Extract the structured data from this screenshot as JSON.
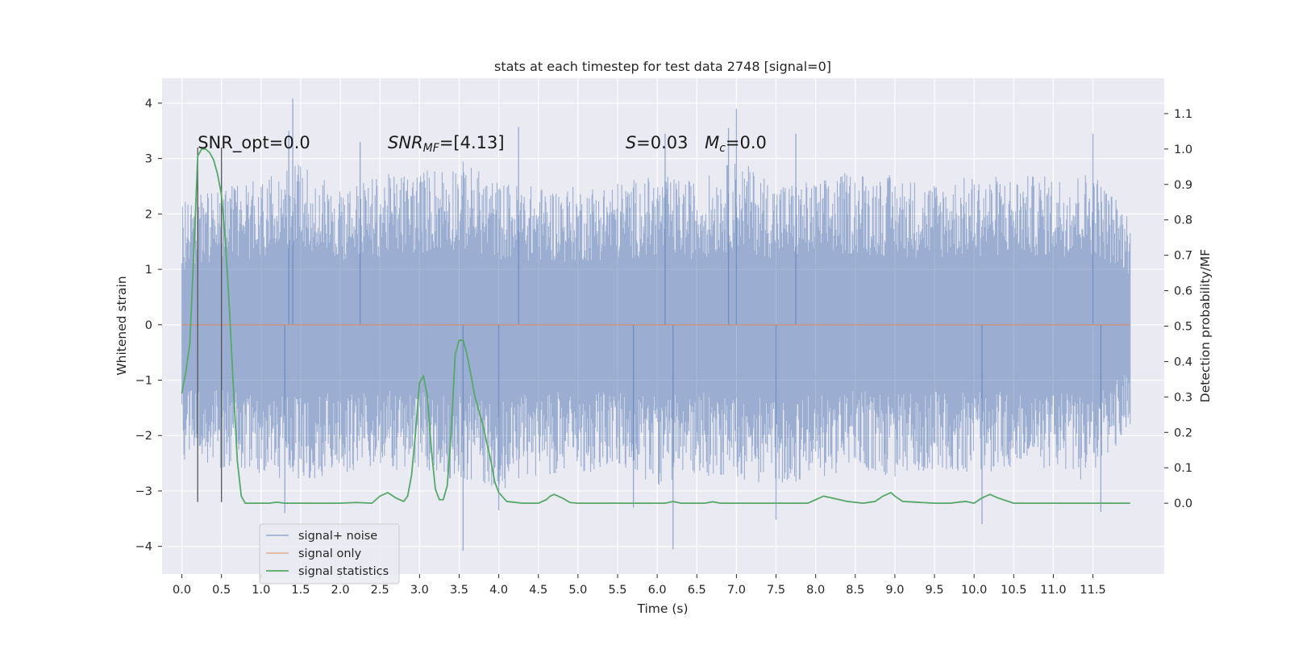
{
  "chart_data": {
    "type": "line",
    "title": "stats at each timestep for test data 2748 [signal=0]",
    "xlabel": "Time (s)",
    "ylabel_left": "Whitened strain",
    "ylabel_right": "Detection probability/MF",
    "xlim": [
      -0.25,
      12.4
    ],
    "ylim_left": [
      -4.5,
      4.45
    ],
    "ylim_right": [
      -0.2,
      1.2
    ],
    "x_ticks": [
      "0.0",
      "0.5",
      "1.0",
      "1.5",
      "2.0",
      "2.5",
      "3.0",
      "3.5",
      "4.0",
      "4.5",
      "5.0",
      "5.5",
      "6.0",
      "6.5",
      "7.0",
      "7.5",
      "8.0",
      "8.5",
      "9.0",
      "9.5",
      "10.0",
      "10.5",
      "11.0",
      "11.5"
    ],
    "y_ticks_left": [
      "4",
      "3",
      "2",
      "1",
      "0",
      "−1",
      "−2",
      "−3",
      "−4"
    ],
    "y_ticks_right": [
      "1.1",
      "1.0",
      "0.9",
      "0.8",
      "0.7",
      "0.6",
      "0.5",
      "0.4",
      "0.3",
      "0.2",
      "0.1",
      "0.0"
    ],
    "grid": true,
    "legend_position": "lower-left",
    "annotations": [
      {
        "label": "SNR_opt=0.0",
        "x": 0.2
      },
      {
        "label_main": "SNR",
        "label_sub": "MF",
        "label_rest": "=[4.13]",
        "x": 2.6
      },
      {
        "label_main": "S",
        "label_rest": "=0.03",
        "x": 5.6
      },
      {
        "label_main": "M",
        "label_sub": "c",
        "label_rest": "=0.0",
        "x": 6.6
      }
    ],
    "vertical_markers": [
      {
        "x": 0.2,
        "y_range": [
          -3.2,
          3.2
        ]
      },
      {
        "x": 0.5,
        "y_range": [
          -3.2,
          3.2
        ]
      }
    ],
    "series": [
      {
        "name": "signal+ noise",
        "axis": "left",
        "style": "noise-band",
        "x_range": [
          0.0,
          11.97
        ],
        "envelope_x": [
          0.0,
          0.5,
          1.0,
          1.5,
          2.0,
          2.5,
          3.0,
          3.5,
          4.0,
          4.5,
          5.0,
          5.5,
          6.0,
          6.5,
          7.0,
          7.5,
          8.0,
          8.5,
          9.0,
          9.5,
          10.0,
          10.5,
          11.0,
          11.5,
          11.97
        ],
        "envelope_upper": [
          2.2,
          2.6,
          2.6,
          3.0,
          2.5,
          2.7,
          2.8,
          3.0,
          2.6,
          2.5,
          2.5,
          2.6,
          2.7,
          2.6,
          3.0,
          2.6,
          2.6,
          2.8,
          2.7,
          2.6,
          2.7,
          2.7,
          2.7,
          2.8,
          2.0
        ],
        "envelope_lower": [
          -2.5,
          -2.6,
          -2.7,
          -2.9,
          -2.7,
          -2.6,
          -2.7,
          -2.8,
          -3.0,
          -2.7,
          -2.7,
          -2.6,
          -2.9,
          -2.7,
          -2.8,
          -2.9,
          -2.8,
          -2.6,
          -2.8,
          -2.6,
          -2.7,
          -2.6,
          -2.6,
          -2.9,
          -1.8
        ],
        "spikes": [
          {
            "x": 1.4,
            "y": 4.08
          },
          {
            "x": 1.35,
            "y": 3.5
          },
          {
            "x": 2.25,
            "y": 3.3
          },
          {
            "x": 4.25,
            "y": 3.57
          },
          {
            "x": 6.1,
            "y": 3.45
          },
          {
            "x": 7.0,
            "y": 3.9
          },
          {
            "x": 6.9,
            "y": 3.55
          },
          {
            "x": 7.75,
            "y": 3.45
          },
          {
            "x": 11.5,
            "y": 3.45
          },
          {
            "x": 3.55,
            "y": -4.08
          },
          {
            "x": 6.2,
            "y": -4.05
          },
          {
            "x": 7.5,
            "y": -3.52
          },
          {
            "x": 10.1,
            "y": -3.6
          },
          {
            "x": 11.6,
            "y": -3.38
          },
          {
            "x": 1.3,
            "y": -3.4
          },
          {
            "x": 5.7,
            "y": -3.3
          },
          {
            "x": 4.0,
            "y": -3.35
          }
        ],
        "color": "#4c72b0"
      },
      {
        "name": "signal only",
        "axis": "left",
        "x": [
          0.0,
          11.97
        ],
        "values": [
          0.0,
          0.0
        ],
        "color": "#dd8452"
      },
      {
        "name": "signal statistics",
        "axis": "right",
        "x": [
          0.0,
          0.05,
          0.1,
          0.15,
          0.2,
          0.25,
          0.3,
          0.35,
          0.4,
          0.45,
          0.5,
          0.55,
          0.6,
          0.65,
          0.7,
          0.75,
          0.8,
          0.85,
          0.9,
          1.0,
          1.1,
          1.2,
          1.3,
          1.4,
          1.5,
          1.8,
          2.0,
          2.2,
          2.4,
          2.5,
          2.6,
          2.7,
          2.8,
          2.85,
          2.9,
          2.95,
          3.0,
          3.05,
          3.1,
          3.15,
          3.2,
          3.25,
          3.3,
          3.35,
          3.4,
          3.45,
          3.5,
          3.55,
          3.6,
          3.65,
          3.7,
          3.8,
          3.9,
          3.95,
          4.0,
          4.1,
          4.3,
          4.5,
          4.6,
          4.65,
          4.7,
          4.8,
          4.9,
          5.0,
          6.0,
          6.1,
          6.2,
          6.3,
          6.6,
          6.7,
          6.8,
          7.0,
          7.5,
          7.9,
          8.0,
          8.1,
          8.2,
          8.4,
          8.6,
          8.75,
          8.85,
          8.95,
          9.0,
          9.1,
          9.5,
          9.7,
          9.8,
          9.9,
          10.0,
          10.1,
          10.2,
          10.3,
          10.5,
          10.8,
          11.0,
          11.5,
          11.97
        ],
        "values": [
          0.31,
          0.37,
          0.45,
          0.7,
          0.98,
          1.0,
          1.0,
          0.99,
          0.97,
          0.93,
          0.87,
          0.74,
          0.55,
          0.33,
          0.12,
          0.02,
          0.0,
          0.0,
          0.0,
          0.0,
          0.0,
          0.003,
          0.0,
          0.0,
          0.0,
          0.0,
          0.0,
          0.002,
          0.0,
          0.02,
          0.03,
          0.015,
          0.005,
          0.02,
          0.08,
          0.2,
          0.34,
          0.36,
          0.3,
          0.15,
          0.04,
          0.01,
          0.01,
          0.05,
          0.2,
          0.42,
          0.46,
          0.46,
          0.42,
          0.36,
          0.3,
          0.22,
          0.12,
          0.06,
          0.03,
          0.005,
          0.0,
          0.0,
          0.01,
          0.02,
          0.025,
          0.015,
          0.002,
          0.0,
          0.0,
          0.0,
          0.005,
          0.0,
          0.0,
          0.004,
          0.0,
          0.0,
          0.0,
          0.0,
          0.01,
          0.02,
          0.015,
          0.005,
          0.0,
          0.005,
          0.02,
          0.03,
          0.02,
          0.005,
          0.0,
          0.0,
          0.003,
          0.005,
          0.0,
          0.015,
          0.025,
          0.015,
          0.0,
          0.0,
          0.0,
          0.0,
          0.0
        ],
        "color": "#55a868"
      }
    ]
  }
}
